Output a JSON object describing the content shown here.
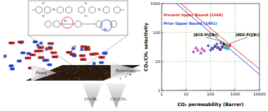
{
  "chart_data": {
    "type": "scatter",
    "xlabel": "CO₂ permeability (Barrer)",
    "ylabel": "CO₂/CH₄ selectivity",
    "log": true,
    "grid": true,
    "xlim": [
      1,
      10000
    ],
    "ylim": [
      1,
      1000
    ],
    "xticks": [
      1,
      10,
      100,
      1000,
      10000
    ],
    "yticks": [
      1,
      10,
      100,
      1000
    ],
    "series": [
      {
        "name": "Present Upper Bound (2008)",
        "type": "line",
        "color": "#e02020",
        "x": [
          6,
          10000
        ],
        "values": [
          1000,
          5.5
        ]
      },
      {
        "name": "Prior Upper Bound (1991)",
        "type": "line",
        "color": "#2040d0",
        "x": [
          4,
          10000
        ],
        "values": [
          1000,
          3.6
        ]
      },
      {
        "type": "scatter",
        "color": "#e040e0",
        "marker": "triangle",
        "x": [
          20,
          25,
          30,
          40,
          45,
          55
        ],
        "values": [
          22,
          30,
          25,
          20,
          28,
          24
        ]
      },
      {
        "type": "scatter",
        "color": "#6040c0",
        "marker": "square",
        "x": [
          120,
          150,
          200,
          250,
          300
        ],
        "values": [
          28,
          33,
          30,
          26,
          32
        ]
      },
      {
        "type": "scatter",
        "color": "#3070e0",
        "marker": "diamond",
        "x": [
          80,
          100,
          180
        ],
        "values": [
          35,
          25,
          40
        ]
      },
      {
        "type": "scatter",
        "color": "#20c0d0",
        "marker": "circle",
        "x": [
          400,
          500
        ],
        "values": [
          30,
          28
        ]
      },
      {
        "type": "scatter",
        "color": "#30b030",
        "marker": "triangle",
        "x": [
          260,
          450
        ],
        "values": [
          45,
          38
        ]
      },
      {
        "type": "scatter",
        "color": "#000000",
        "marker": "star",
        "x": [
          350
        ],
        "values": [
          40
        ]
      },
      {
        "type": "scatter",
        "color": "#ff3060",
        "marker": "square",
        "x": [
          600
        ],
        "values": [
          35
        ]
      }
    ],
    "annotations": [
      {
        "text": "[BCE-PI][Br]",
        "x": 350,
        "y": 40
      },
      {
        "text": "[BEE-PI][Br]",
        "x": 600,
        "y": 35
      }
    ]
  },
  "diagram": {
    "labels": {
      "feed": "Feed",
      "retentate": "Retentate",
      "permeate_n2": "CO₂/N₂",
      "permeate_ch4": "CO₂/CH₄"
    },
    "structure": {
      "atoms": [
        "O",
        "N",
        "O",
        "O",
        "N",
        "O",
        "N⁺",
        "Br⁻"
      ]
    }
  }
}
